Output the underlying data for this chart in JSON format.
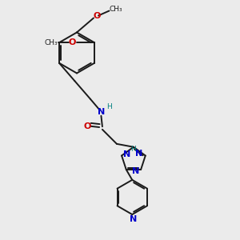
{
  "bg_color": "#ebebeb",
  "bond_color": "#1a1a1a",
  "nitrogen_color": "#0000cc",
  "oxygen_color": "#cc0000",
  "teal_color": "#008080",
  "text_color": "#1a1a1a",
  "figsize": [
    3.0,
    3.0
  ],
  "dpi": 100,
  "lw": 1.4,
  "fs": 8.0,
  "fs_small": 6.5,
  "xlim": [
    0,
    10
  ],
  "ylim": [
    0,
    10
  ]
}
